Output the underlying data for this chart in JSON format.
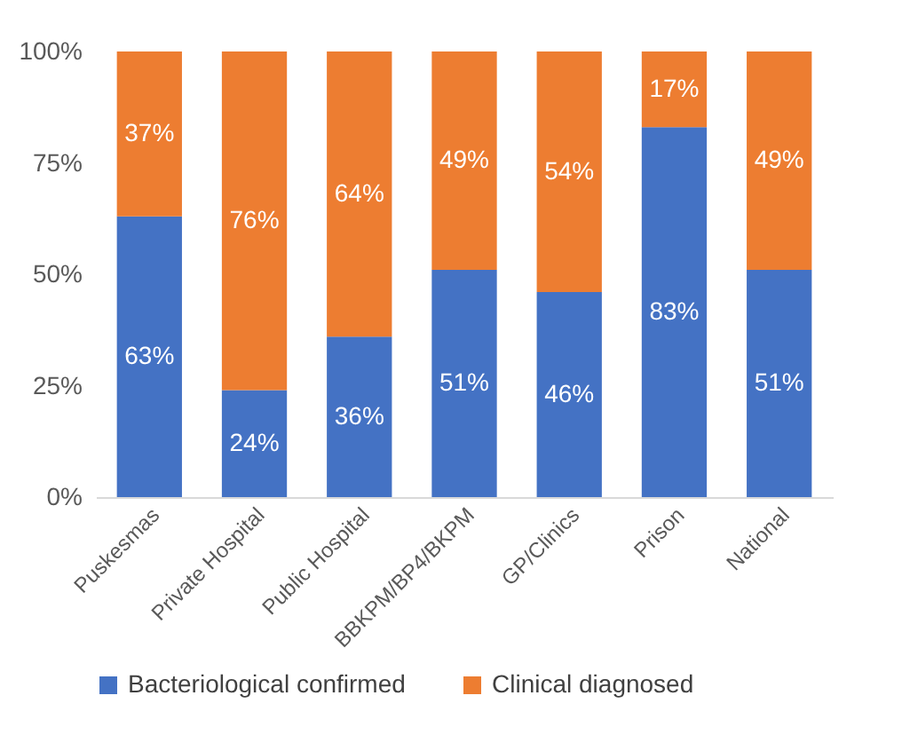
{
  "chart_data": {
    "type": "bar",
    "stacked": true,
    "categories": [
      "Puskesmas",
      "Private Hospital",
      "Public Hospital",
      "BBKPM/BP4/BKPM",
      "GP/Clinics",
      "Prison",
      "National"
    ],
    "series": [
      {
        "name": "Bacteriological confirmed",
        "color": "#4472c4",
        "values": [
          63,
          24,
          36,
          51,
          46,
          83,
          51
        ],
        "value_labels": [
          "63%",
          "24%",
          "36%",
          "51%",
          "46%",
          "83%",
          "51%"
        ]
      },
      {
        "name": "Clinical diagnosed",
        "color": "#ed7d31",
        "values": [
          37,
          76,
          64,
          49,
          54,
          17,
          49
        ],
        "value_labels": [
          "37%",
          "76%",
          "64%",
          "49%",
          "54%",
          "17%",
          "49%"
        ]
      }
    ],
    "ylim": [
      0,
      100
    ],
    "yticks": [
      {
        "value": 0,
        "label": "0%"
      },
      {
        "value": 25,
        "label": "25%"
      },
      {
        "value": 50,
        "label": "50%"
      },
      {
        "value": 75,
        "label": "75%"
      },
      {
        "value": 100,
        "label": "100%"
      }
    ],
    "legend": "bottom"
  }
}
